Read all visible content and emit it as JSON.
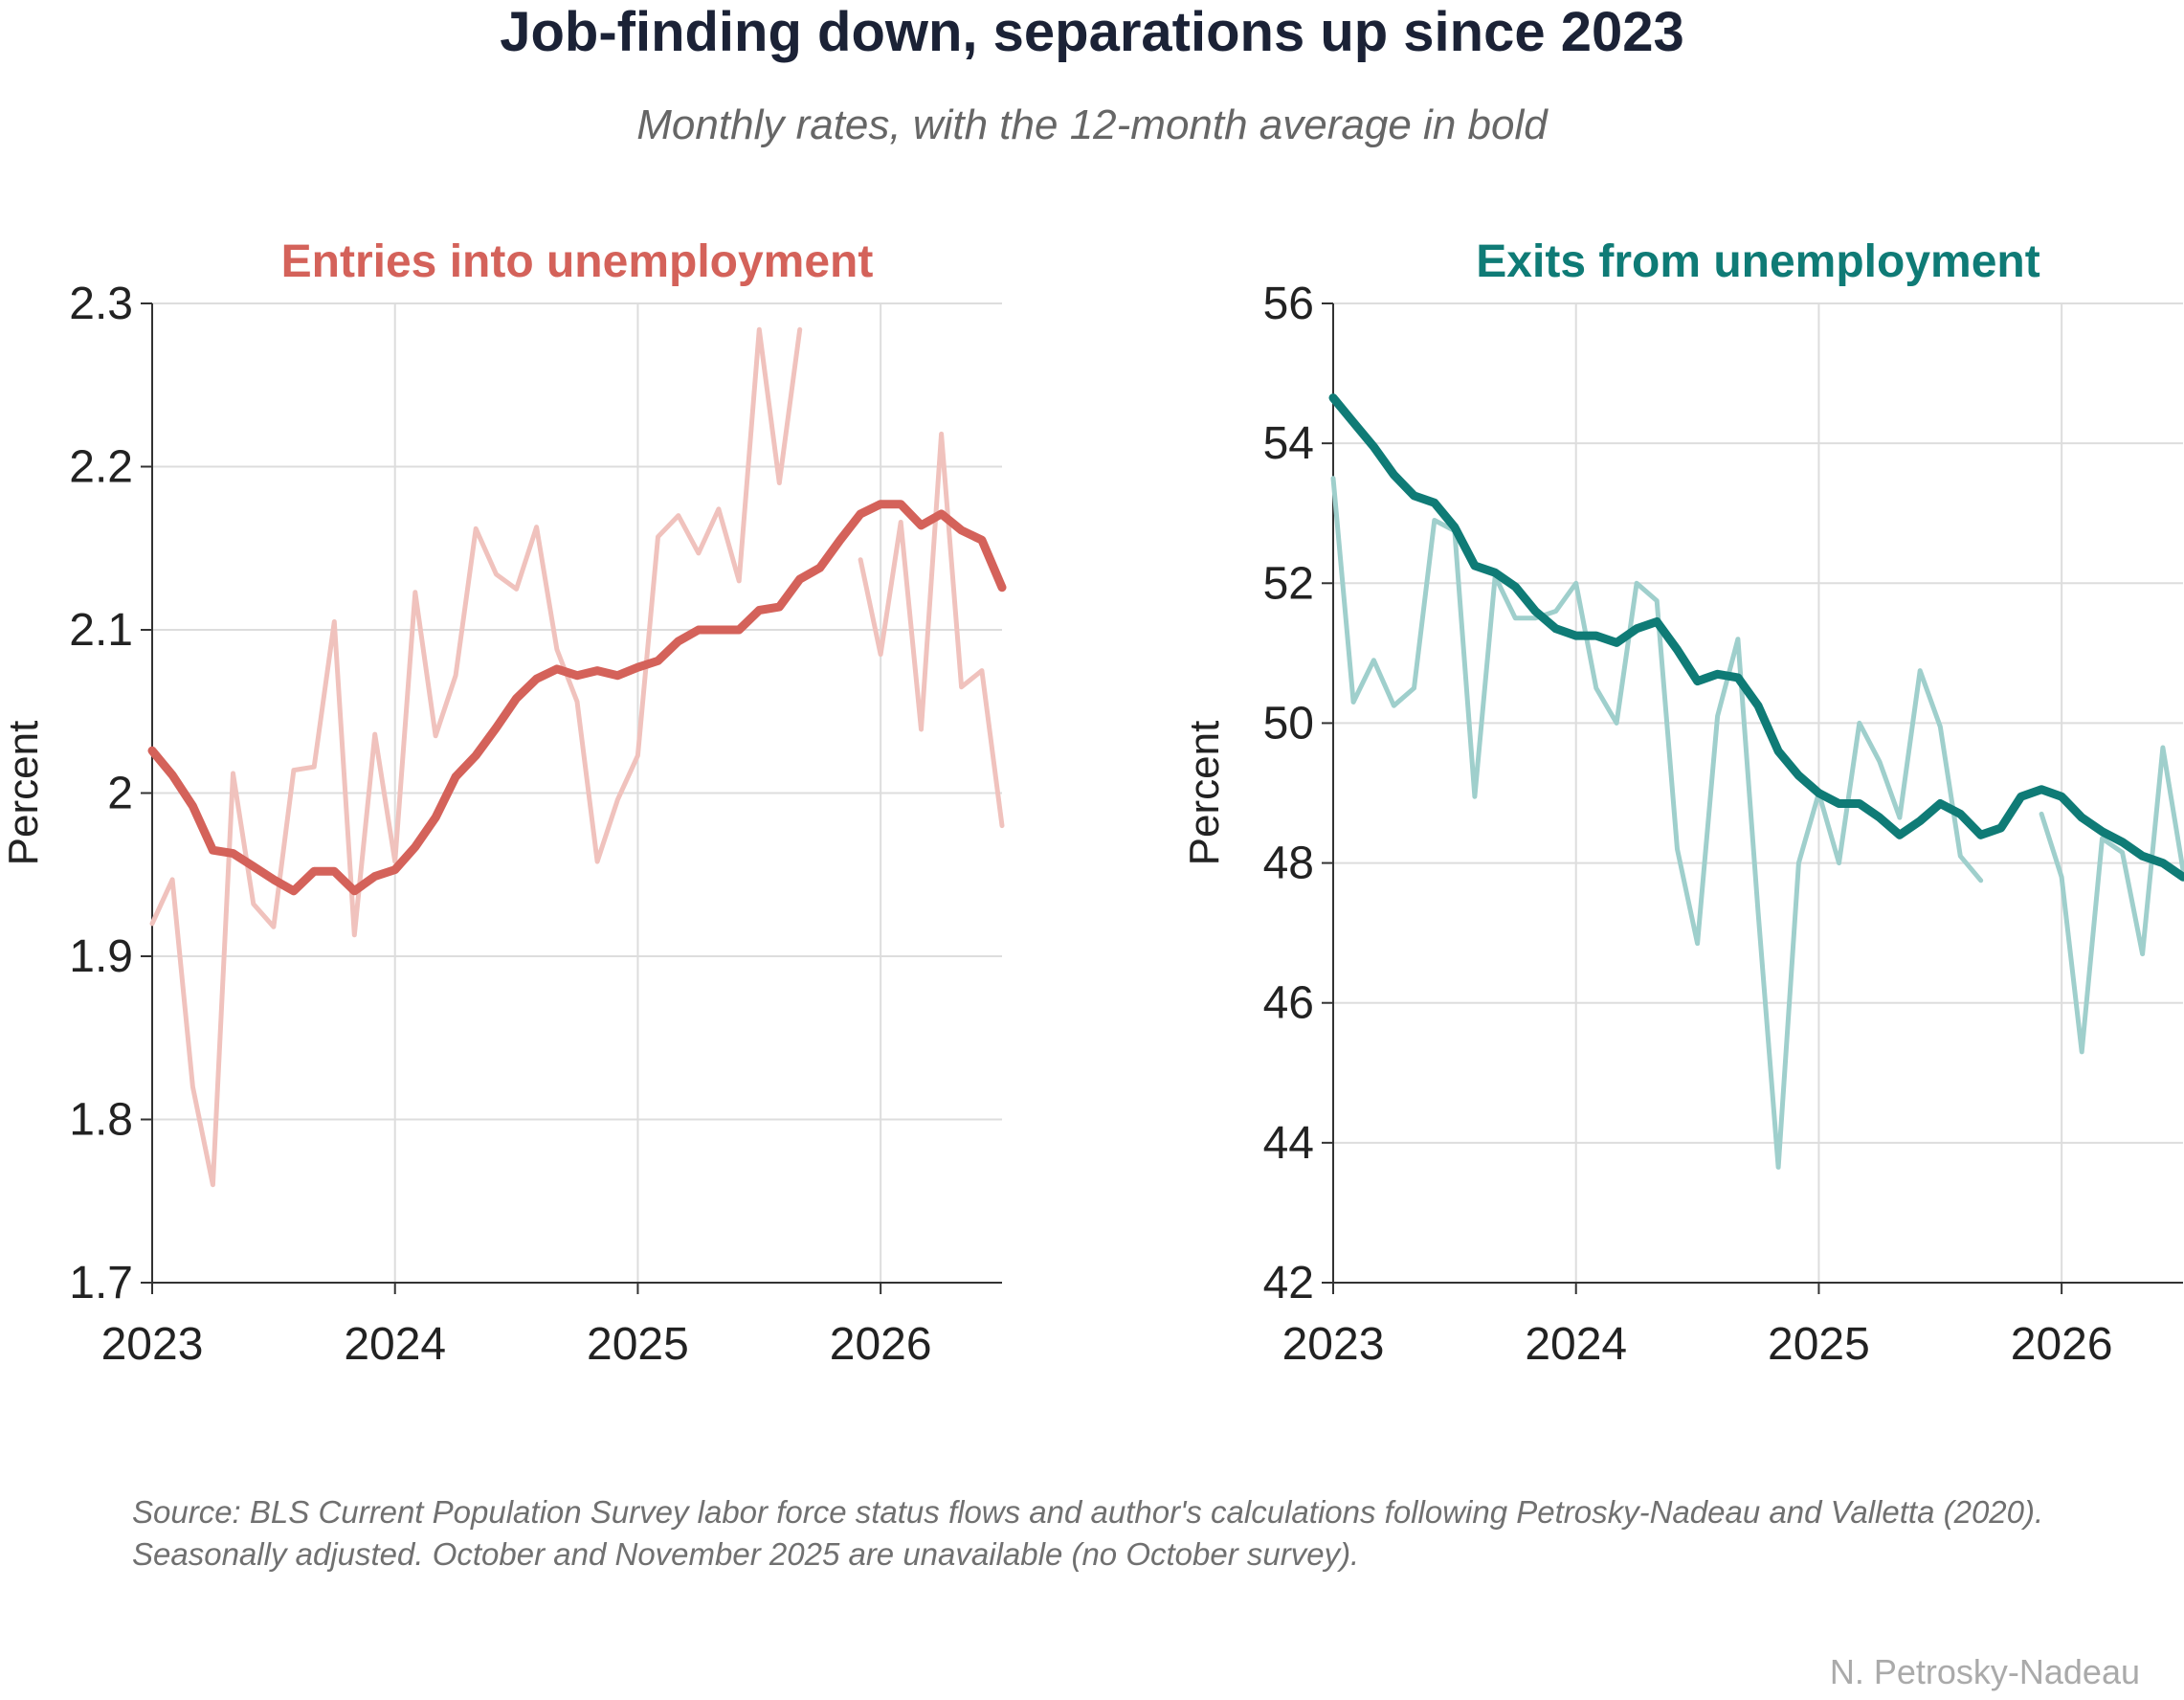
{
  "title": "Job-finding down, separations up since 2023",
  "subtitle": "Monthly rates, with the 12-month average in bold",
  "source": "Source: BLS Current Population Survey labor force status flows and author's calculations following Petrosky-Nadeau and Valletta (2020). Seasonally adjusted. October and November 2025 are unavailable (no October survey).",
  "credit": "N. Petrosky-Nadeau",
  "colors": {
    "entries_main": "#d4625a",
    "entries_light": "#f0c2bd",
    "exits_main": "#0f7b76",
    "exits_light": "#9fcfcc",
    "grid": "#dddddd",
    "axis": "#333333",
    "text": "#222222"
  },
  "chart_data": [
    {
      "type": "line",
      "title": "Entries into unemployment",
      "ylabel": "Percent",
      "xlabel": "",
      "xlim": [
        2023.0,
        2026.5
      ],
      "xticks": [
        2023,
        2024,
        2025,
        2026
      ],
      "ylim": [
        1.7,
        2.3
      ],
      "yticks": [
        1.7,
        1.8,
        1.9,
        2.0,
        2.1,
        2.2,
        2.3
      ],
      "ytick_labels": [
        "1.7",
        "1.8",
        "1.9",
        "2",
        "2.1",
        "2.2",
        "2.3"
      ],
      "grid": true,
      "series": [
        {
          "style": "monthly",
          "x": [
            2023.0,
            2023.083,
            2023.167,
            2023.25,
            2023.333,
            2023.417,
            2023.5,
            2023.583,
            2023.667,
            2023.75,
            2023.833,
            2023.917,
            2024.0,
            2024.083,
            2024.167,
            2024.25,
            2024.333,
            2024.417,
            2024.5,
            2024.583,
            2024.667,
            2024.75,
            2024.833,
            2024.917,
            2025.0,
            2025.083,
            2025.167,
            2025.25,
            2025.333,
            2025.417,
            2025.5,
            2025.583,
            2025.667,
            2025.75,
            2025.833,
            2025.917,
            2026.0,
            2026.083,
            2026.167,
            2026.25,
            2026.333,
            2026.417,
            2026.5
          ],
          "values": [
            1.92,
            1.947,
            1.82,
            1.76,
            2.012,
            1.932,
            1.918,
            2.014,
            2.016,
            2.105,
            1.913,
            2.036,
            1.958,
            2.123,
            2.035,
            2.072,
            2.162,
            2.134,
            2.125,
            2.163,
            2.088,
            2.056,
            1.958,
            1.996,
            2.023,
            2.157,
            2.17,
            2.147,
            2.174,
            2.13,
            2.284,
            2.19,
            2.284,
            null,
            null,
            2.143,
            2.085,
            2.166,
            2.039,
            2.22,
            2.065,
            2.075,
            1.98
          ]
        },
        {
          "style": "12-month average",
          "x": [
            2023.0,
            2023.083,
            2023.167,
            2023.25,
            2023.333,
            2023.417,
            2023.5,
            2023.583,
            2023.667,
            2023.75,
            2023.833,
            2023.917,
            2024.0,
            2024.083,
            2024.167,
            2024.25,
            2024.333,
            2024.417,
            2024.5,
            2024.583,
            2024.667,
            2024.75,
            2024.833,
            2024.917,
            2025.0,
            2025.083,
            2025.167,
            2025.25,
            2025.333,
            2025.417,
            2025.5,
            2025.583,
            2025.667,
            2025.75,
            2025.833,
            2025.917,
            2026.0,
            2026.083,
            2026.167,
            2026.25,
            2026.333,
            2026.417,
            2026.5
          ],
          "values": [
            2.026,
            2.011,
            1.992,
            1.965,
            1.963,
            1.955,
            1.947,
            1.94,
            1.952,
            1.952,
            1.94,
            1.949,
            1.953,
            1.967,
            1.985,
            2.01,
            2.023,
            2.04,
            2.058,
            2.07,
            2.076,
            2.072,
            2.075,
            2.072,
            2.077,
            2.081,
            2.093,
            2.1,
            2.1,
            2.1,
            2.112,
            2.114,
            2.131,
            2.138,
            2.155,
            2.171,
            2.177,
            2.177,
            2.164,
            2.171,
            2.161,
            2.155,
            2.126
          ]
        }
      ]
    },
    {
      "type": "line",
      "title": "Exits from unemployment",
      "ylabel": "Percent",
      "xlabel": "",
      "xlim": [
        2023.0,
        2026.5
      ],
      "xticks": [
        2023,
        2024,
        2025,
        2026
      ],
      "ylim": [
        42,
        56
      ],
      "yticks": [
        42,
        44,
        46,
        48,
        50,
        52,
        54,
        56
      ],
      "ytick_labels": [
        "42",
        "44",
        "46",
        "48",
        "50",
        "52",
        "54",
        "56"
      ],
      "grid": true,
      "series": [
        {
          "style": "monthly",
          "x": [
            2023.0,
            2023.083,
            2023.167,
            2023.25,
            2023.333,
            2023.417,
            2023.5,
            2023.583,
            2023.667,
            2023.75,
            2023.833,
            2023.917,
            2024.0,
            2024.083,
            2024.167,
            2024.25,
            2024.333,
            2024.417,
            2024.5,
            2024.583,
            2024.667,
            2024.75,
            2024.833,
            2024.917,
            2025.0,
            2025.083,
            2025.167,
            2025.25,
            2025.333,
            2025.417,
            2025.5,
            2025.583,
            2025.667,
            2025.75,
            2025.833,
            2025.917,
            2026.0,
            2026.083,
            2026.167,
            2026.25,
            2026.333,
            2026.417,
            2026.5
          ],
          "values": [
            53.5,
            50.3,
            50.9,
            50.25,
            50.5,
            52.9,
            52.75,
            48.95,
            52.1,
            51.5,
            51.5,
            51.6,
            52.0,
            50.5,
            50.0,
            52.0,
            51.75,
            48.2,
            46.85,
            50.1,
            51.2,
            47.3,
            43.65,
            48.0,
            49.0,
            48.0,
            50.0,
            49.45,
            48.65,
            50.75,
            49.95,
            48.1,
            47.75,
            null,
            null,
            48.7,
            47.8,
            45.3,
            48.35,
            48.15,
            46.7,
            49.65,
            47.9
          ]
        },
        {
          "style": "12-month average",
          "x": [
            2023.0,
            2023.083,
            2023.167,
            2023.25,
            2023.333,
            2023.417,
            2023.5,
            2023.583,
            2023.667,
            2023.75,
            2023.833,
            2023.917,
            2024.0,
            2024.083,
            2024.167,
            2024.25,
            2024.333,
            2024.417,
            2024.5,
            2024.583,
            2024.667,
            2024.75,
            2024.833,
            2024.917,
            2025.0,
            2025.083,
            2025.167,
            2025.25,
            2025.333,
            2025.417,
            2025.5,
            2025.583,
            2025.667,
            2025.75,
            2025.833,
            2025.917,
            2026.0,
            2026.083,
            2026.167,
            2026.25,
            2026.333,
            2026.417,
            2026.5
          ],
          "values": [
            54.65,
            54.3,
            53.95,
            53.55,
            53.25,
            53.15,
            52.8,
            52.25,
            52.15,
            51.95,
            51.6,
            51.35,
            51.25,
            51.25,
            51.15,
            51.35,
            51.45,
            51.05,
            50.6,
            50.7,
            50.65,
            50.25,
            49.6,
            49.25,
            49.0,
            48.85,
            48.85,
            48.65,
            48.4,
            48.6,
            48.85,
            48.7,
            48.4,
            48.5,
            48.95,
            49.05,
            48.95,
            48.65,
            48.45,
            48.3,
            48.1,
            48.0,
            47.8
          ]
        }
      ]
    }
  ]
}
